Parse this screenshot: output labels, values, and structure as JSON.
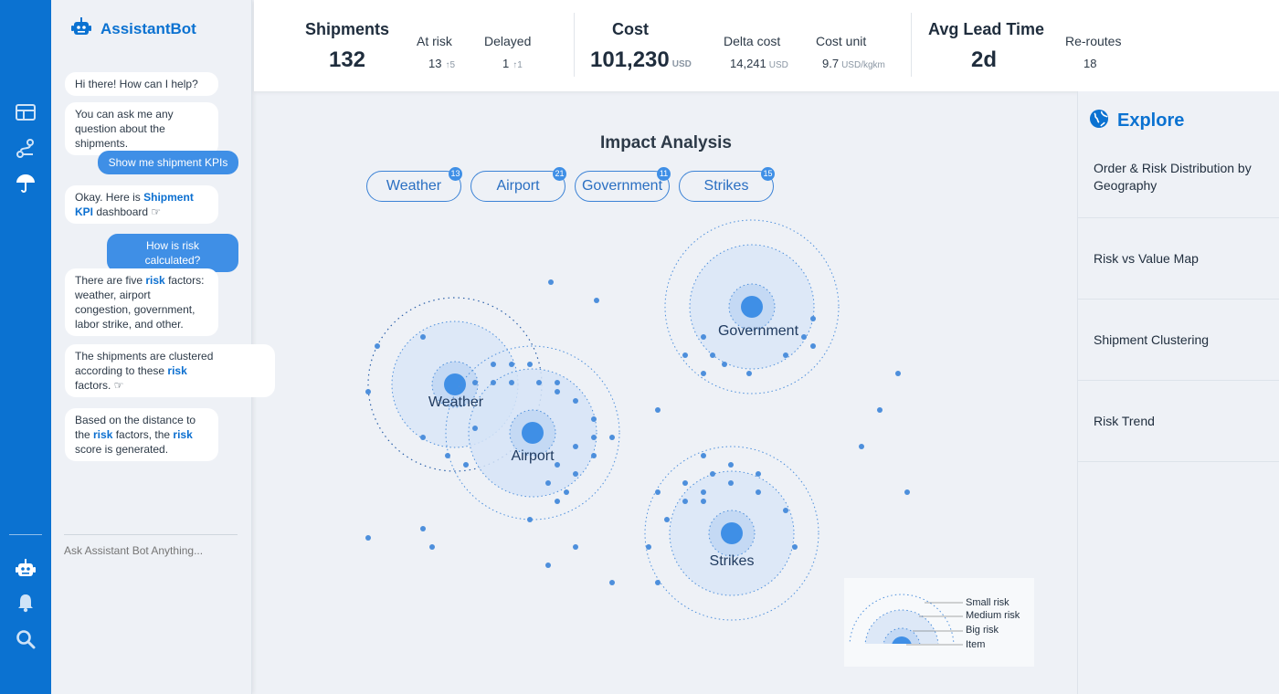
{
  "app": {
    "brand": "AssistantBot"
  },
  "colors": {
    "accent": "#0b72d1",
    "bubble_user": "#3f8fe6",
    "point": "#3f8fe6"
  },
  "rail": {
    "icons": [
      "dashboard-icon",
      "route-icon",
      "umbrella-icon",
      "robot-icon",
      "bell-icon",
      "search-icon"
    ]
  },
  "chat": {
    "m1": "Hi there! How can I help?",
    "m2": "You can ask me any question about the shipments.",
    "m3": "Show me shipment KPIs",
    "m4_pre": "Okay. Here is ",
    "m4_link": "Shipment KPI",
    "m4_post": " dashboard ☞",
    "m5": "How is risk calculated?",
    "m6_pre": "There are five ",
    "m6_link": "risk",
    "m6_post": " factors: weather, airport congestion, government, labor strike, and other.",
    "m7_pre": "The shipments are clustered according to these ",
    "m7_link": "risk",
    "m7_post": " factors. ☞",
    "m8_pre": "Based on the distance to the ",
    "m8_link1": "risk",
    "m8_mid": " factors, the ",
    "m8_link2": "risk",
    "m8_post": " score is generated.",
    "input_placeholder": "Ask Assistant Bot Anything..."
  },
  "kpis": {
    "shipments": {
      "label": "Shipments",
      "value": "132"
    },
    "at_risk": {
      "label": "At risk",
      "value": "13",
      "trend": "↑5"
    },
    "delayed": {
      "label": "Delayed",
      "value": "1",
      "trend": "↑1"
    },
    "cost": {
      "label": "Cost",
      "value": "101,230",
      "unit": "USD"
    },
    "delta_cost": {
      "label": "Delta cost",
      "value": "14,241",
      "unit": "USD"
    },
    "cost_unit": {
      "label": "Cost unit",
      "value": "9.7",
      "unit": "USD/kgkm"
    },
    "lead_time": {
      "label": "Avg Lead Time",
      "value": "2d"
    },
    "reroutes": {
      "label": "Re-routes",
      "value": "18"
    }
  },
  "main": {
    "title": "Impact Analysis",
    "filters": [
      {
        "label": "Weather",
        "count": "13"
      },
      {
        "label": "Airport",
        "count": "21"
      },
      {
        "label": "Government",
        "count": "11"
      },
      {
        "label": "Strikes",
        "count": "15"
      }
    ],
    "clusters": [
      "Weather",
      "Airport",
      "Government",
      "Strikes"
    ]
  },
  "legend": {
    "small": "Small risk",
    "medium": "Medium risk",
    "big": "Big risk",
    "item": "Item"
  },
  "explore": {
    "title": "Explore",
    "items": [
      "Order & Risk Distribution by Geography",
      "Risk vs Value Map",
      "Shipment Clustering",
      "Risk Trend"
    ]
  }
}
